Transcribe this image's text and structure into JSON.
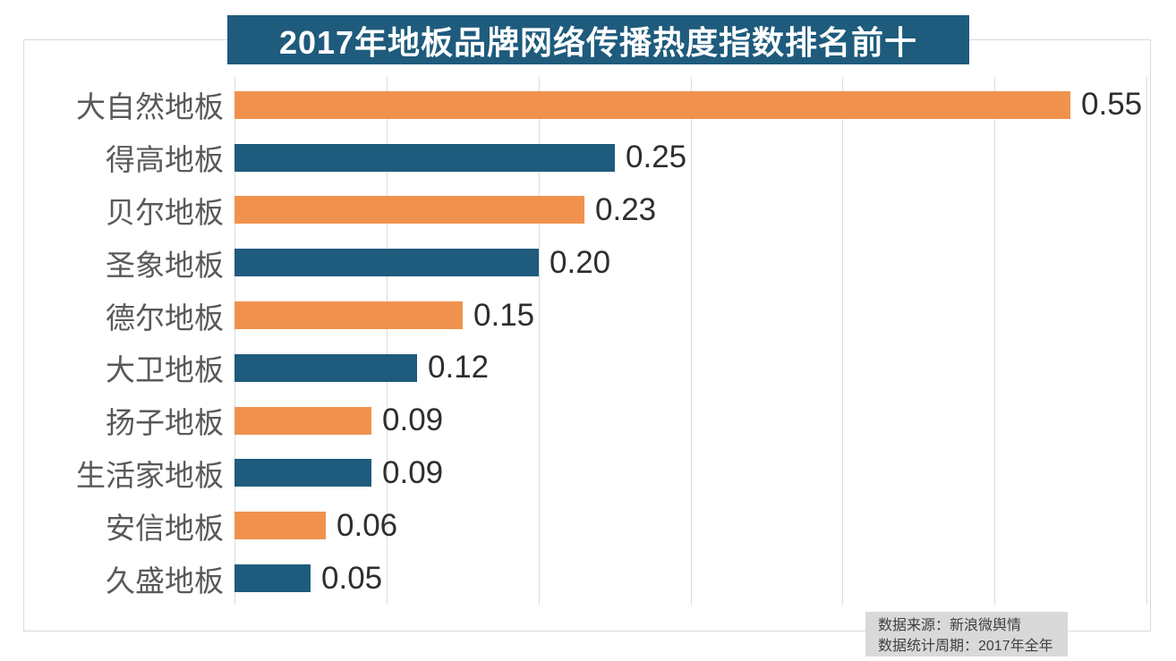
{
  "title": "2017年地板品牌网络传播热度指数排名前十",
  "chart_data": {
    "type": "bar",
    "orientation": "horizontal",
    "title": "2017年地板品牌网络传播热度指数排名前十",
    "categories": [
      "大自然地板",
      "得高地板",
      "贝尔地板",
      "圣象地板",
      "德尔地板",
      "大卫地板",
      "扬子地板",
      "生活家地板",
      "安信地板",
      "久盛地板"
    ],
    "values": [
      0.55,
      0.25,
      0.23,
      0.2,
      0.15,
      0.12,
      0.09,
      0.09,
      0.06,
      0.05
    ],
    "value_labels": [
      "0.55",
      "0.25",
      "0.23",
      "0.20",
      "0.15",
      "0.12",
      "0.09",
      "0.09",
      "0.06",
      "0.05"
    ],
    "xlabel": "",
    "ylabel": "",
    "xlim": [
      0,
      0.6
    ],
    "grid_step": 0.1,
    "grid": true,
    "legend": false,
    "bar_colors_alternating": [
      "#f0924d",
      "#1e5b7c"
    ]
  },
  "colors": {
    "title_bg": "#1e5b7c",
    "title_text": "#ffffff",
    "orange_bar": "#f0924d",
    "blue_bar": "#1e5b7c",
    "grid": "#dcdcdc",
    "frame_border": "#d9d9d9",
    "category_label": "#595959",
    "value_label": "#2e2e2e",
    "footer_bg": "#d9d9d9",
    "footer_text": "#404040"
  },
  "footer": {
    "source_line": "数据来源：新浪微舆情",
    "period_line": "数据统计周期：2017年全年"
  }
}
